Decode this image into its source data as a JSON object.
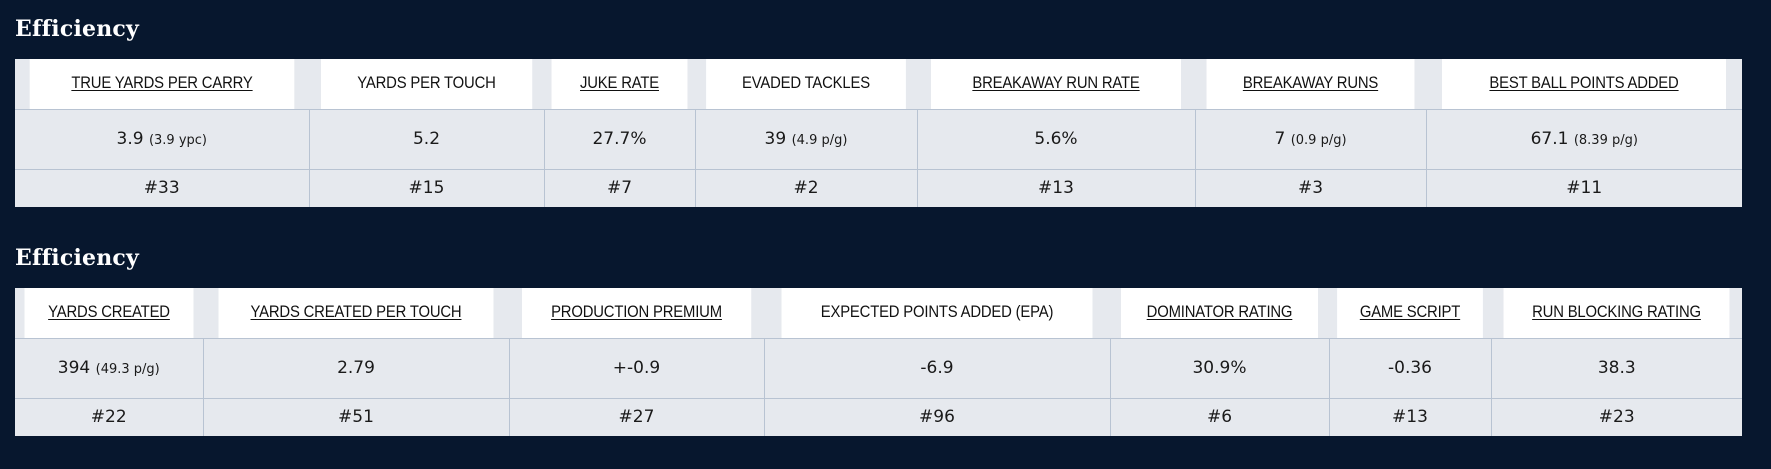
{
  "sections": [
    {
      "title": "Efficiency",
      "columns": [
        {
          "label": "TRUE YARDS PER CARRY",
          "link": true,
          "value": "3.9",
          "sub": "(3.9 ypc)",
          "rank": "#33"
        },
        {
          "label": "YARDS PER TOUCH",
          "link": false,
          "value": "5.2",
          "sub": "",
          "rank": "#15"
        },
        {
          "label": "JUKE RATE",
          "link": true,
          "value": "27.7%",
          "sub": "",
          "rank": "#7"
        },
        {
          "label": "EVADED TACKLES",
          "link": false,
          "value": "39",
          "sub": "(4.9 p/g)",
          "rank": "#2"
        },
        {
          "label": "BREAKAWAY RUN RATE",
          "link": true,
          "value": "5.6%",
          "sub": "",
          "rank": "#13"
        },
        {
          "label": "BREAKAWAY RUNS",
          "link": true,
          "value": "7",
          "sub": "(0.9 p/g)",
          "rank": "#3"
        },
        {
          "label": "BEST BALL POINTS ADDED",
          "link": true,
          "value": "67.1",
          "sub": "(8.39 p/g)",
          "rank": "#11"
        }
      ]
    },
    {
      "title": "Efficiency",
      "columns": [
        {
          "label": "YARDS CREATED",
          "link": true,
          "value": "394",
          "sub": "(49.3 p/g)",
          "rank": "#22"
        },
        {
          "label": "YARDS CREATED PER TOUCH",
          "link": true,
          "value": "2.79",
          "sub": "",
          "rank": "#51"
        },
        {
          "label": "PRODUCTION PREMIUM",
          "link": true,
          "value": "+-0.9",
          "sub": "",
          "rank": "#27"
        },
        {
          "label": "EXPECTED POINTS ADDED (EPA)",
          "link": false,
          "value": "-6.9",
          "sub": "",
          "rank": "#96"
        },
        {
          "label": "DOMINATOR RATING",
          "link": true,
          "value": "30.9%",
          "sub": "",
          "rank": "#6"
        },
        {
          "label": "GAME SCRIPT",
          "link": true,
          "value": "-0.36",
          "sub": "",
          "rank": "#13"
        },
        {
          "label": "RUN BLOCKING RATING",
          "link": true,
          "value": "38.3",
          "sub": "",
          "rank": "#23"
        }
      ]
    }
  ]
}
